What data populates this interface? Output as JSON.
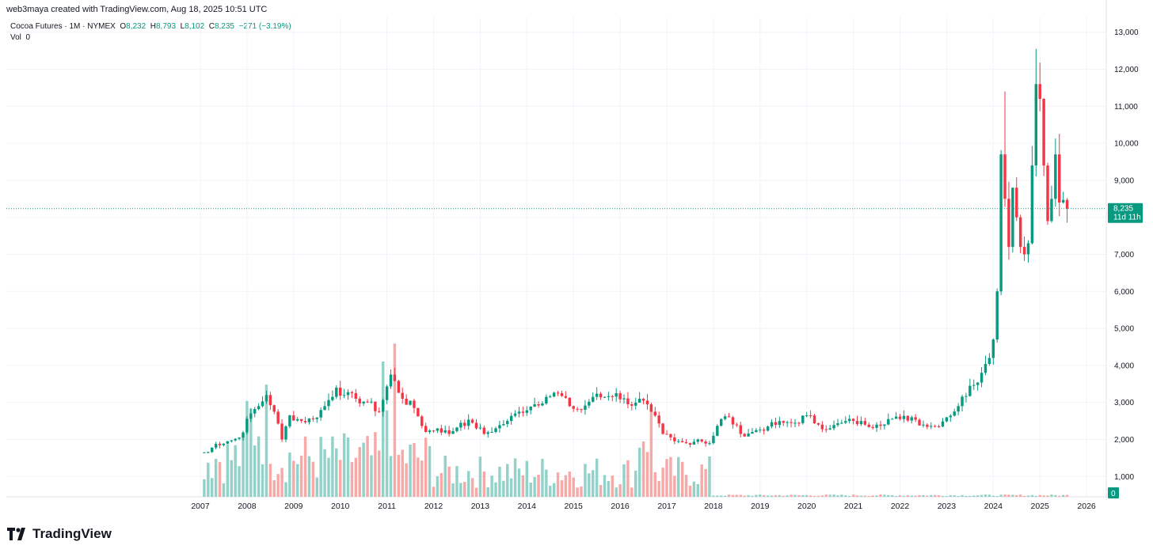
{
  "header": {
    "attribution": "web3maya created with TradingView.com, Aug 18, 2025 10:51 UTC"
  },
  "legend": {
    "symbol": "Cocoa Futures · 1M · NYMEX",
    "o_label": "O",
    "o_value": "8,232",
    "h_label": "H",
    "h_value": "8,793",
    "l_label": "L",
    "l_value": "8,102",
    "c_label": "C",
    "c_value": "8,235",
    "change": "−271 (−3.19%)",
    "vol_label": "Vol",
    "vol_value": "0"
  },
  "price_tag": {
    "price": "8,235",
    "countdown": "11d 11h"
  },
  "vol_tag": "0",
  "brand": {
    "name": "TradingView"
  },
  "colors": {
    "up": "#089981",
    "down": "#f23645",
    "vol_up": "#92d2c8",
    "vol_down": "#f7a9a7",
    "grid": "#f0f3fa",
    "price_line": "#089981"
  },
  "chart_data": {
    "type": "candlestick",
    "title": "Cocoa Futures · 1M · NYMEX",
    "ylim": [
      450,
      13400
    ],
    "y_ticks": [
      "1,000",
      "2,000",
      "3,000",
      "4,000",
      "5,000",
      "6,000",
      "7,000",
      "8,000",
      "9,000",
      "10,000",
      "11,000",
      "12,000",
      "13,000"
    ],
    "x_ticks": [
      "2007",
      "2008",
      "2009",
      "2010",
      "2011",
      "2012",
      "2013",
      "2014",
      "2015",
      "2016",
      "2017",
      "2018",
      "2019",
      "2020",
      "2021",
      "2022",
      "2023",
      "2024",
      "2025",
      "2026"
    ],
    "last_price": 8235,
    "monthly_close_path": [
      [
        "2007-01",
        1650
      ],
      [
        "2007-03",
        1660
      ],
      [
        "2007-05",
        1880
      ],
      [
        "2007-08",
        1950
      ],
      [
        "2007-11",
        2050
      ],
      [
        "2008-02",
        2700
      ],
      [
        "2008-04",
        2900
      ],
      [
        "2008-06",
        3200
      ],
      [
        "2008-08",
        2750
      ],
      [
        "2008-10",
        2000
      ],
      [
        "2008-12",
        2650
      ],
      [
        "2009-03",
        2500
      ],
      [
        "2009-06",
        2550
      ],
      [
        "2009-09",
        2900
      ],
      [
        "2009-12",
        3400
      ],
      [
        "2010-02",
        3200
      ],
      [
        "2010-05",
        3100
      ],
      [
        "2010-08",
        3000
      ],
      [
        "2010-11",
        2750
      ],
      [
        "2011-02",
        3750
      ],
      [
        "2011-05",
        3100
      ],
      [
        "2011-08",
        2850
      ],
      [
        "2011-11",
        2200
      ],
      [
        "2012-02",
        2300
      ],
      [
        "2012-05",
        2150
      ],
      [
        "2012-08",
        2450
      ],
      [
        "2012-11",
        2450
      ],
      [
        "2013-02",
        2150
      ],
      [
        "2013-05",
        2300
      ],
      [
        "2013-08",
        2500
      ],
      [
        "2013-11",
        2750
      ],
      [
        "2014-03",
        2950
      ],
      [
        "2014-06",
        3150
      ],
      [
        "2014-09",
        3250
      ],
      [
        "2014-12",
        2900
      ],
      [
        "2015-03",
        2800
      ],
      [
        "2015-06",
        3150
      ],
      [
        "2015-09",
        3150
      ],
      [
        "2015-12",
        3250
      ],
      [
        "2016-03",
        2950
      ],
      [
        "2016-06",
        3100
      ],
      [
        "2016-09",
        2750
      ],
      [
        "2016-12",
        2150
      ],
      [
        "2017-03",
        1950
      ],
      [
        "2017-06",
        1900
      ],
      [
        "2017-09",
        2000
      ],
      [
        "2017-12",
        1900
      ],
      [
        "2018-03",
        2550
      ],
      [
        "2018-05",
        2600
      ],
      [
        "2018-08",
        2150
      ],
      [
        "2018-11",
        2200
      ],
      [
        "2019-03",
        2350
      ],
      [
        "2019-07",
        2450
      ],
      [
        "2019-10",
        2450
      ],
      [
        "2020-01",
        2650
      ],
      [
        "2020-04",
        2400
      ],
      [
        "2020-07",
        2300
      ],
      [
        "2020-10",
        2450
      ],
      [
        "2021-01",
        2500
      ],
      [
        "2021-04",
        2400
      ],
      [
        "2021-07",
        2400
      ],
      [
        "2021-10",
        2550
      ],
      [
        "2022-01",
        2550
      ],
      [
        "2022-04",
        2600
      ],
      [
        "2022-07",
        2400
      ],
      [
        "2022-10",
        2350
      ],
      [
        "2023-01",
        2600
      ],
      [
        "2023-04",
        2900
      ],
      [
        "2023-07",
        3450
      ],
      [
        "2023-10",
        3800
      ],
      [
        "2023-12",
        4200
      ],
      [
        "2024-01",
        4700
      ],
      [
        "2024-02",
        6000
      ],
      [
        "2024-03",
        9700
      ],
      [
        "2024-04",
        8500
      ],
      [
        "2024-05",
        7200
      ],
      [
        "2024-06",
        8800
      ],
      [
        "2024-07",
        8000
      ],
      [
        "2024-08",
        7200
      ],
      [
        "2024-09",
        7000
      ],
      [
        "2024-10",
        7300
      ],
      [
        "2024-11",
        9400
      ],
      [
        "2024-12",
        11600
      ],
      [
        "2025-01",
        11200
      ],
      [
        "2025-02",
        9400
      ],
      [
        "2025-03",
        7900
      ],
      [
        "2025-04",
        8500
      ],
      [
        "2025-05",
        9700
      ],
      [
        "2025-06",
        8400
      ],
      [
        "2025-07",
        8470
      ],
      [
        "2025-08",
        8235
      ]
    ],
    "notable_highs": [
      [
        "2024-04",
        11400
      ],
      [
        "2024-12",
        12550
      ]
    ],
    "volume_note": "Volume bars 2007–2017 (relative, no scale); near zero after 2017"
  }
}
